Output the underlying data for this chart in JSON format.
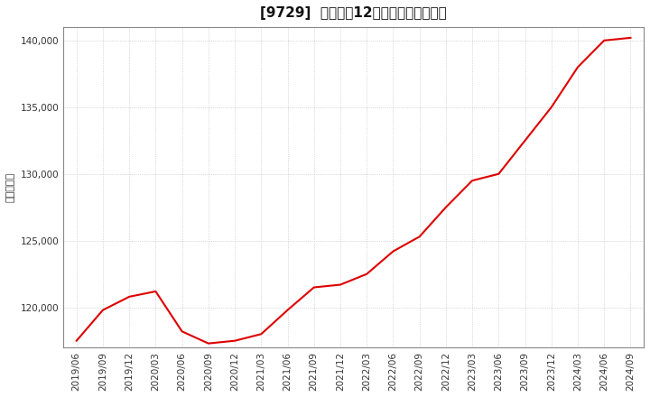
{
  "title": "[9729]  売上高の12か月移動合計の推移",
  "ylabel": "（百万円）",
  "line_color": "#dd0000",
  "background_color": "#ffffff",
  "plot_bg_color": "#ffffff",
  "grid_color": "#aaaaaa",
  "ylim": [
    117000,
    141000
  ],
  "yticks": [
    120000,
    125000,
    130000,
    135000,
    140000
  ],
  "x_labels": [
    "2019/06",
    "2019/09",
    "2019/12",
    "2020/03",
    "2020/06",
    "2020/09",
    "2020/12",
    "2021/03",
    "2021/06",
    "2021/09",
    "2021/12",
    "2022/03",
    "2022/06",
    "2022/09",
    "2022/12",
    "2023/03",
    "2023/06",
    "2023/09",
    "2023/12",
    "2024/03",
    "2024/06",
    "2024/09"
  ],
  "values": [
    117500,
    119800,
    120800,
    121200,
    118200,
    117300,
    117500,
    118000,
    119800,
    121500,
    121700,
    122500,
    124200,
    125300,
    127500,
    129500,
    130000,
    132500,
    135000,
    138000,
    140000,
    140200
  ],
  "title_fontsize": 11,
  "tick_fontsize": 7.5,
  "ylabel_fontsize": 8,
  "line_width": 1.5
}
